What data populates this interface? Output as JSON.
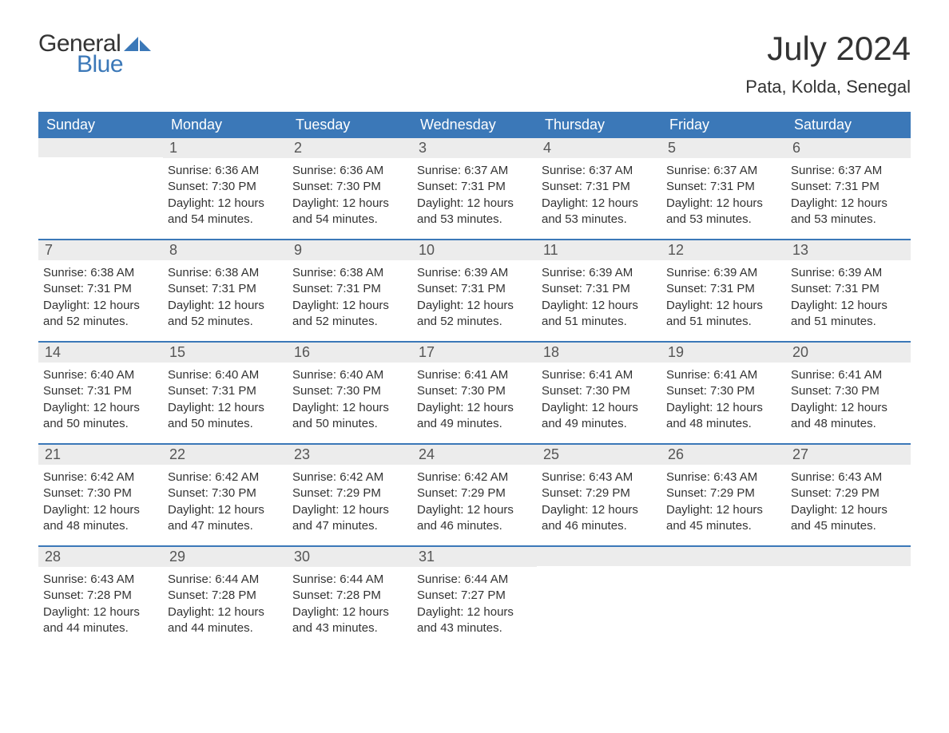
{
  "logo": {
    "word1": "General",
    "word2": "Blue",
    "mark_color": "#3b78b8",
    "text_color_dark": "#333333"
  },
  "title": "July 2024",
  "location": "Pata, Kolda, Senegal",
  "colors": {
    "header_bg": "#3b78b8",
    "header_text": "#ffffff",
    "daynum_bg": "#ececec",
    "daynum_text": "#555555",
    "body_text": "#333333",
    "row_divider": "#3b78b8",
    "page_bg": "#ffffff"
  },
  "typography": {
    "title_fontsize": 42,
    "location_fontsize": 22,
    "weekday_fontsize": 18,
    "daynum_fontsize": 18,
    "body_fontsize": 15
  },
  "weekdays": [
    "Sunday",
    "Monday",
    "Tuesday",
    "Wednesday",
    "Thursday",
    "Friday",
    "Saturday"
  ],
  "weeks": [
    [
      {
        "day": "",
        "sunrise": "",
        "sunset": "",
        "daylight": ""
      },
      {
        "day": "1",
        "sunrise": "Sunrise: 6:36 AM",
        "sunset": "Sunset: 7:30 PM",
        "daylight": "Daylight: 12 hours and 54 minutes."
      },
      {
        "day": "2",
        "sunrise": "Sunrise: 6:36 AM",
        "sunset": "Sunset: 7:30 PM",
        "daylight": "Daylight: 12 hours and 54 minutes."
      },
      {
        "day": "3",
        "sunrise": "Sunrise: 6:37 AM",
        "sunset": "Sunset: 7:31 PM",
        "daylight": "Daylight: 12 hours and 53 minutes."
      },
      {
        "day": "4",
        "sunrise": "Sunrise: 6:37 AM",
        "sunset": "Sunset: 7:31 PM",
        "daylight": "Daylight: 12 hours and 53 minutes."
      },
      {
        "day": "5",
        "sunrise": "Sunrise: 6:37 AM",
        "sunset": "Sunset: 7:31 PM",
        "daylight": "Daylight: 12 hours and 53 minutes."
      },
      {
        "day": "6",
        "sunrise": "Sunrise: 6:37 AM",
        "sunset": "Sunset: 7:31 PM",
        "daylight": "Daylight: 12 hours and 53 minutes."
      }
    ],
    [
      {
        "day": "7",
        "sunrise": "Sunrise: 6:38 AM",
        "sunset": "Sunset: 7:31 PM",
        "daylight": "Daylight: 12 hours and 52 minutes."
      },
      {
        "day": "8",
        "sunrise": "Sunrise: 6:38 AM",
        "sunset": "Sunset: 7:31 PM",
        "daylight": "Daylight: 12 hours and 52 minutes."
      },
      {
        "day": "9",
        "sunrise": "Sunrise: 6:38 AM",
        "sunset": "Sunset: 7:31 PM",
        "daylight": "Daylight: 12 hours and 52 minutes."
      },
      {
        "day": "10",
        "sunrise": "Sunrise: 6:39 AM",
        "sunset": "Sunset: 7:31 PM",
        "daylight": "Daylight: 12 hours and 52 minutes."
      },
      {
        "day": "11",
        "sunrise": "Sunrise: 6:39 AM",
        "sunset": "Sunset: 7:31 PM",
        "daylight": "Daylight: 12 hours and 51 minutes."
      },
      {
        "day": "12",
        "sunrise": "Sunrise: 6:39 AM",
        "sunset": "Sunset: 7:31 PM",
        "daylight": "Daylight: 12 hours and 51 minutes."
      },
      {
        "day": "13",
        "sunrise": "Sunrise: 6:39 AM",
        "sunset": "Sunset: 7:31 PM",
        "daylight": "Daylight: 12 hours and 51 minutes."
      }
    ],
    [
      {
        "day": "14",
        "sunrise": "Sunrise: 6:40 AM",
        "sunset": "Sunset: 7:31 PM",
        "daylight": "Daylight: 12 hours and 50 minutes."
      },
      {
        "day": "15",
        "sunrise": "Sunrise: 6:40 AM",
        "sunset": "Sunset: 7:31 PM",
        "daylight": "Daylight: 12 hours and 50 minutes."
      },
      {
        "day": "16",
        "sunrise": "Sunrise: 6:40 AM",
        "sunset": "Sunset: 7:30 PM",
        "daylight": "Daylight: 12 hours and 50 minutes."
      },
      {
        "day": "17",
        "sunrise": "Sunrise: 6:41 AM",
        "sunset": "Sunset: 7:30 PM",
        "daylight": "Daylight: 12 hours and 49 minutes."
      },
      {
        "day": "18",
        "sunrise": "Sunrise: 6:41 AM",
        "sunset": "Sunset: 7:30 PM",
        "daylight": "Daylight: 12 hours and 49 minutes."
      },
      {
        "day": "19",
        "sunrise": "Sunrise: 6:41 AM",
        "sunset": "Sunset: 7:30 PM",
        "daylight": "Daylight: 12 hours and 48 minutes."
      },
      {
        "day": "20",
        "sunrise": "Sunrise: 6:41 AM",
        "sunset": "Sunset: 7:30 PM",
        "daylight": "Daylight: 12 hours and 48 minutes."
      }
    ],
    [
      {
        "day": "21",
        "sunrise": "Sunrise: 6:42 AM",
        "sunset": "Sunset: 7:30 PM",
        "daylight": "Daylight: 12 hours and 48 minutes."
      },
      {
        "day": "22",
        "sunrise": "Sunrise: 6:42 AM",
        "sunset": "Sunset: 7:30 PM",
        "daylight": "Daylight: 12 hours and 47 minutes."
      },
      {
        "day": "23",
        "sunrise": "Sunrise: 6:42 AM",
        "sunset": "Sunset: 7:29 PM",
        "daylight": "Daylight: 12 hours and 47 minutes."
      },
      {
        "day": "24",
        "sunrise": "Sunrise: 6:42 AM",
        "sunset": "Sunset: 7:29 PM",
        "daylight": "Daylight: 12 hours and 46 minutes."
      },
      {
        "day": "25",
        "sunrise": "Sunrise: 6:43 AM",
        "sunset": "Sunset: 7:29 PM",
        "daylight": "Daylight: 12 hours and 46 minutes."
      },
      {
        "day": "26",
        "sunrise": "Sunrise: 6:43 AM",
        "sunset": "Sunset: 7:29 PM",
        "daylight": "Daylight: 12 hours and 45 minutes."
      },
      {
        "day": "27",
        "sunrise": "Sunrise: 6:43 AM",
        "sunset": "Sunset: 7:29 PM",
        "daylight": "Daylight: 12 hours and 45 minutes."
      }
    ],
    [
      {
        "day": "28",
        "sunrise": "Sunrise: 6:43 AM",
        "sunset": "Sunset: 7:28 PM",
        "daylight": "Daylight: 12 hours and 44 minutes."
      },
      {
        "day": "29",
        "sunrise": "Sunrise: 6:44 AM",
        "sunset": "Sunset: 7:28 PM",
        "daylight": "Daylight: 12 hours and 44 minutes."
      },
      {
        "day": "30",
        "sunrise": "Sunrise: 6:44 AM",
        "sunset": "Sunset: 7:28 PM",
        "daylight": "Daylight: 12 hours and 43 minutes."
      },
      {
        "day": "31",
        "sunrise": "Sunrise: 6:44 AM",
        "sunset": "Sunset: 7:27 PM",
        "daylight": "Daylight: 12 hours and 43 minutes."
      },
      {
        "day": "",
        "sunrise": "",
        "sunset": "",
        "daylight": ""
      },
      {
        "day": "",
        "sunrise": "",
        "sunset": "",
        "daylight": ""
      },
      {
        "day": "",
        "sunrise": "",
        "sunset": "",
        "daylight": ""
      }
    ]
  ]
}
